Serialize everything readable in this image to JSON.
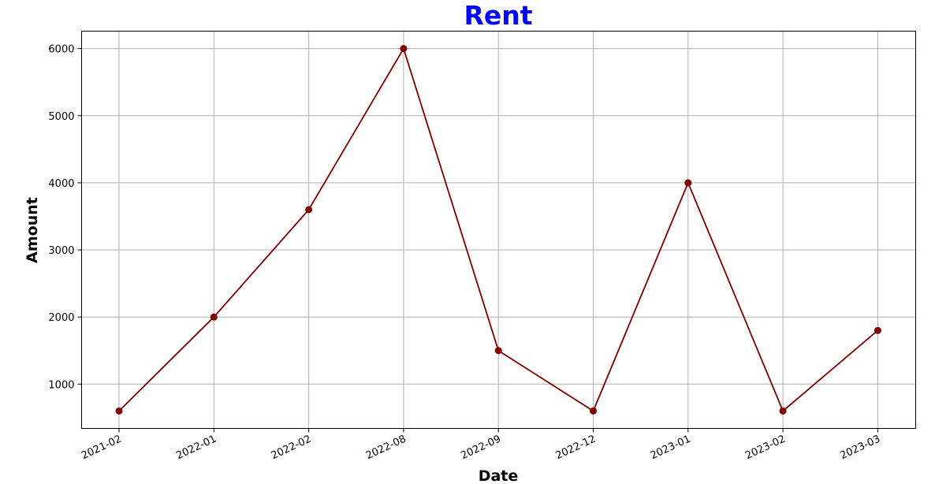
{
  "chart_data": {
    "type": "line",
    "title": "Rent",
    "xlabel": "Date",
    "ylabel": "Amount",
    "categories": [
      "2021-02",
      "2022-01",
      "2022-02",
      "2022-08",
      "2022-09",
      "2022-12",
      "2023-01",
      "2023-02",
      "2023-03"
    ],
    "series": [
      {
        "values": [
          600,
          2000,
          3600,
          6000,
          1500,
          600,
          4000,
          600,
          1800
        ]
      }
    ],
    "yticks": [
      1000,
      2000,
      3000,
      4000,
      5000,
      6000
    ],
    "ylim": [
      340,
      6260
    ],
    "grid": true,
    "colors": {
      "title": "#0000ff",
      "line": "#800000",
      "marker": "#800000",
      "grid": "#b0b0b0"
    }
  }
}
